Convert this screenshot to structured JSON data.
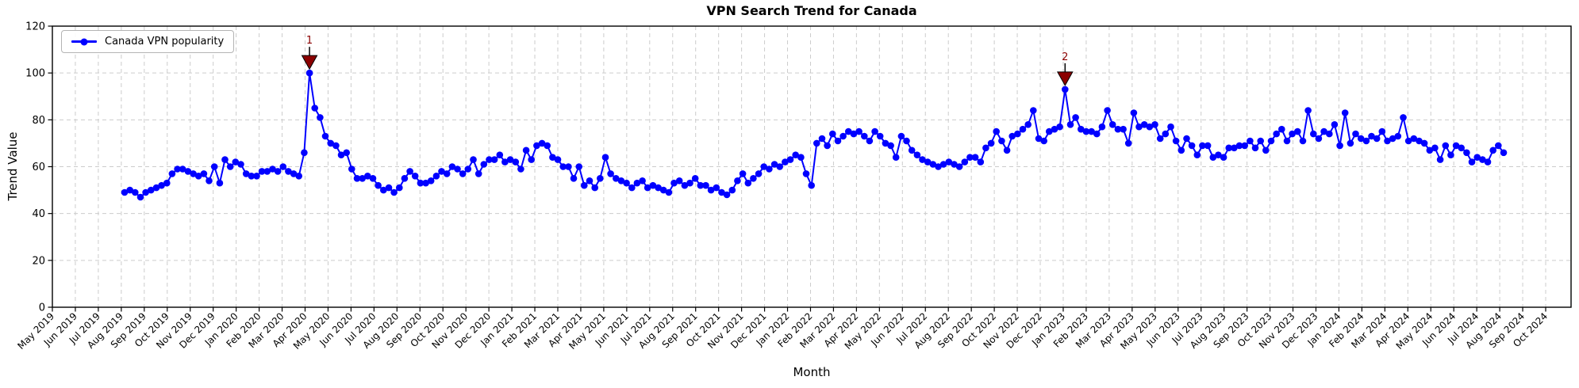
{
  "figure": {
    "title": "VPN Search Trend for Canada",
    "xlabel": "Month",
    "ylabel": "Trend Value",
    "legend_label": "Canada VPN popularity"
  },
  "chart_data": {
    "type": "line",
    "title": "VPN Search Trend for Canada",
    "xlabel": "Month",
    "ylabel": "Trend Value",
    "ylim": [
      0,
      120
    ],
    "y_ticks": [
      0,
      20,
      40,
      60,
      80,
      100,
      120
    ],
    "grid": true,
    "legend_position": "upper left",
    "line_color": "#0000ff",
    "grid_color": "#cccccc",
    "annotation_color": "#8b0000",
    "x_tick_labels": [
      "May 2019",
      "Jun 2019",
      "Jul 2019",
      "Aug 2019",
      "Sep 2019",
      "Oct 2019",
      "Nov 2019",
      "Dec 2019",
      "Jan 2020",
      "Feb 2020",
      "Mar 2020",
      "Apr 2020",
      "May 2020",
      "Jun 2020",
      "Jul 2020",
      "Aug 2020",
      "Sep 2020",
      "Oct 2020",
      "Nov 2020",
      "Dec 2020",
      "Jan 2021",
      "Feb 2021",
      "Mar 2021",
      "Apr 2021",
      "May 2021",
      "Jun 2021",
      "Jul 2021",
      "Aug 2021",
      "Sep 2021",
      "Oct 2021",
      "Nov 2021",
      "Dec 2021",
      "Jan 2022",
      "Feb 2022",
      "Mar 2022",
      "Apr 2022",
      "May 2022",
      "Jun 2022",
      "Jul 2022",
      "Aug 2022",
      "Sep 2022",
      "Oct 2022",
      "Nov 2022",
      "Dec 2022",
      "Jan 2023",
      "Feb 2023",
      "Mar 2023",
      "Apr 2023",
      "May 2023",
      "Jun 2023",
      "Jul 2023",
      "Aug 2023",
      "Sep 2023",
      "Oct 2023",
      "Nov 2023",
      "Dec 2023",
      "Jan 2024",
      "Feb 2024",
      "Mar 2024",
      "Apr 2024",
      "May 2024",
      "Jun 2024",
      "Jul 2024",
      "Aug 2024",
      "Sep 2024",
      "Oct 2024"
    ],
    "series": [
      {
        "name": "Canada VPN popularity",
        "cadence": "weekly",
        "values": [
          49,
          50,
          49,
          47,
          49,
          50,
          51,
          52,
          53,
          57,
          59,
          59,
          58,
          57,
          56,
          57,
          54,
          60,
          53,
          63,
          60,
          62,
          61,
          57,
          56,
          56,
          58,
          58,
          59,
          58,
          60,
          58,
          57,
          56,
          66,
          100,
          85,
          81,
          73,
          70,
          69,
          65,
          66,
          59,
          55,
          55,
          56,
          55,
          52,
          50,
          51,
          49,
          51,
          55,
          58,
          56,
          53,
          53,
          54,
          56,
          58,
          57,
          60,
          59,
          57,
          59,
          63,
          57,
          61,
          63,
          63,
          65,
          62,
          63,
          62,
          59,
          67,
          63,
          69,
          70,
          69,
          64,
          63,
          60,
          60,
          55,
          60,
          52,
          54,
          51,
          55,
          64,
          57,
          55,
          54,
          53,
          51,
          53,
          54,
          51,
          52,
          51,
          50,
          49,
          53,
          54,
          52,
          53,
          55,
          52,
          52,
          50,
          51,
          49,
          48,
          50,
          54,
          57,
          53,
          55,
          57,
          60,
          59,
          61,
          60,
          62,
          63,
          65,
          64,
          57,
          52,
          70,
          72,
          69,
          74,
          71,
          73,
          75,
          74,
          75,
          73,
          71,
          75,
          73,
          70,
          69,
          64,
          73,
          71,
          67,
          65,
          63,
          62,
          61,
          60,
          61,
          62,
          61,
          60,
          62,
          64,
          64,
          62,
          68,
          70,
          75,
          71,
          67,
          73,
          74,
          76,
          78,
          84,
          72,
          71,
          75,
          76,
          77,
          93,
          78,
          81,
          76,
          75,
          75,
          74,
          77,
          84,
          78,
          76,
          76,
          70,
          83,
          77,
          78,
          77,
          78,
          72,
          74,
          77,
          71,
          67,
          72,
          69,
          65,
          69,
          69,
          64,
          65,
          64,
          68,
          68,
          69,
          69,
          71,
          68,
          71,
          67,
          71,
          74,
          76,
          71,
          74,
          75,
          71,
          84,
          74,
          72,
          75,
          74,
          78,
          69,
          83,
          70,
          74,
          72,
          71,
          73,
          72,
          75,
          71,
          72,
          73,
          81,
          71,
          72,
          71,
          70,
          67,
          68,
          63,
          69,
          65,
          69,
          68,
          66,
          62,
          64,
          63,
          62,
          67,
          69,
          66
        ]
      }
    ],
    "annotations": [
      {
        "label": "1",
        "index": 35,
        "value": 100
      },
      {
        "label": "2",
        "index": 178,
        "value": 93
      }
    ]
  }
}
